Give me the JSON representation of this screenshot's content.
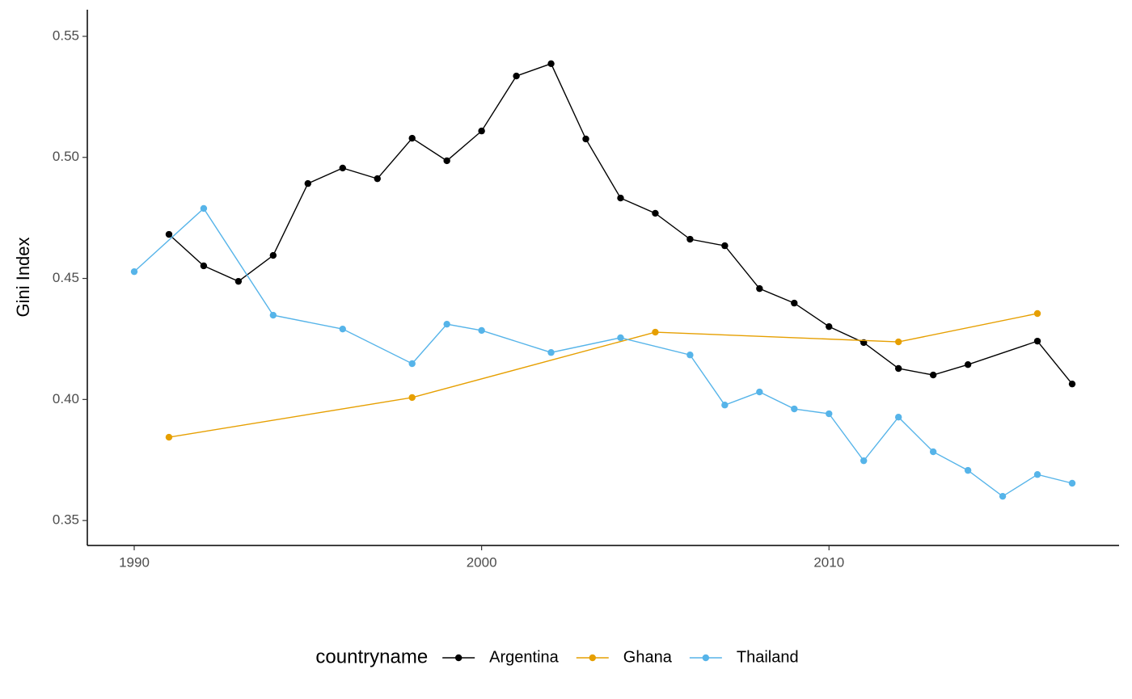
{
  "chart_data": {
    "type": "line",
    "y_label": "Gini Index",
    "legend_title": "countryname",
    "legend_position": "bottom",
    "grid": false,
    "xlim": [
      1988.65,
      2018.35
    ],
    "ylim": [
      0.3397,
      0.561
    ],
    "xticks": [
      1990,
      2000,
      2010
    ],
    "yticks": [
      0.35,
      {
        "value": 0.4,
        "label": "0.40"
      },
      0.45,
      {
        "value": 0.5,
        "label": "0.50"
      },
      0.55
    ],
    "series": [
      {
        "name": "Argentina",
        "color": "#000000",
        "x": [
          1991,
          1992,
          1993,
          1994,
          1995,
          1996,
          1997,
          1998,
          1999,
          2000,
          2001,
          2002,
          2003,
          2004,
          2005,
          2006,
          2007,
          2008,
          2009,
          2010,
          2011,
          2012,
          2013,
          2014,
          2016,
          2017
        ],
        "values": [
          0.4682,
          0.4552,
          0.4488,
          0.4595,
          0.4892,
          0.4956,
          0.4912,
          0.5079,
          0.4986,
          0.5109,
          0.5336,
          0.5387,
          0.5076,
          0.4832,
          0.4769,
          0.4662,
          0.4635,
          0.4458,
          0.4398,
          0.4301,
          0.4235,
          0.4128,
          0.4101,
          0.4144,
          0.4241,
          0.4064
        ]
      },
      {
        "name": "Ghana",
        "color": "#E69F00",
        "x": [
          1991,
          1998,
          2005,
          2012,
          2016
        ],
        "values": [
          0.3844,
          0.4008,
          0.4278,
          0.4238,
          0.4355
        ]
      },
      {
        "name": "Thailand",
        "color": "#56B4E9",
        "x": [
          1990,
          1992,
          1994,
          1996,
          1998,
          1999,
          2000,
          2002,
          2004,
          2006,
          2007,
          2008,
          2009,
          2010,
          2011,
          2012,
          2013,
          2014,
          2015,
          2016,
          2017
        ],
        "values": [
          0.4528,
          0.4789,
          0.4348,
          0.4291,
          0.4148,
          0.4311,
          0.4285,
          0.4194,
          0.4255,
          0.4184,
          0.3977,
          0.4031,
          0.3961,
          0.3941,
          0.3747,
          0.3927,
          0.3784,
          0.3707,
          0.36,
          0.369,
          0.3654
        ]
      }
    ]
  }
}
